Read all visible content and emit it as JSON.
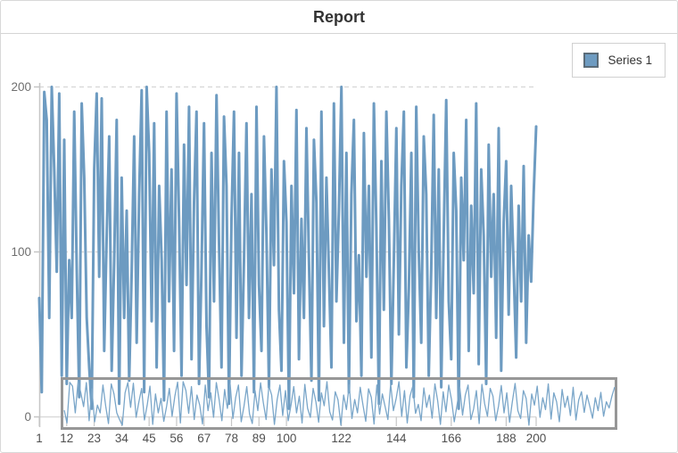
{
  "header": {
    "title": "Report"
  },
  "legend": {
    "position": "top-right",
    "items": [
      {
        "label": "Series 1",
        "color": "#6d9bc1"
      }
    ]
  },
  "colors": {
    "series": "#6d9bc1",
    "mini_series": "#7aa6c9",
    "grid": "#d9d9d9",
    "axis": "#c6c6c6",
    "x_tick_label": "#4f4f4f",
    "y_tick_label": "#6e6e6e",
    "range_box_border": "#979797",
    "panel_border": "#d8d8d8",
    "title_text": "#333333"
  },
  "chart_data": {
    "type": "line",
    "title": "Report",
    "xlabel": "",
    "ylabel": "",
    "x_range": [
      1,
      200
    ],
    "ylim": [
      0,
      200
    ],
    "y_ticks": [
      0,
      100,
      200
    ],
    "x_ticks": [
      1,
      12,
      23,
      34,
      45,
      56,
      67,
      78,
      89,
      100,
      122,
      144,
      166,
      188,
      200
    ],
    "grid": "horizontal-dashed",
    "legend_position": "top-right",
    "range_navigator": {
      "visible": true,
      "shows_full_series": true
    },
    "series": [
      {
        "name": "Series 1",
        "values": [
          72,
          15,
          197,
          180,
          60,
          200,
          150,
          88,
          196,
          25,
          168,
          20,
          95,
          60,
          185,
          90,
          12,
          190,
          145,
          60,
          30,
          5,
          150,
          196,
          85,
          193,
          40,
          110,
          170,
          28,
          95,
          180,
          8,
          145,
          60,
          125,
          22,
          88,
          170,
          45,
          135,
          198,
          15,
          200,
          160,
          58,
          178,
          30,
          140,
          95,
          10,
          185,
          70,
          150,
          40,
          196,
          120,
          25,
          165,
          80,
          188,
          35,
          130,
          185,
          20,
          90,
          178,
          55,
          12,
          160,
          70,
          195,
          105,
          30,
          182,
          140,
          8,
          120,
          185,
          48,
          160,
          25,
          95,
          178,
          60,
          135,
          15,
          188,
          80,
          40,
          170,
          110,
          18,
          150,
          92,
          200,
          65,
          28,
          155,
          118,
          5,
          140,
          75,
          186,
          35,
          120,
          60,
          175,
          95,
          22,
          168,
          130,
          10,
          185,
          55,
          145,
          88,
          30,
          190,
          70,
          125,
          200,
          45,
          160,
          15,
          135,
          180,
          58,
          98,
          25,
          172,
          85,
          140,
          36,
          190,
          115,
          8,
          155,
          65,
          185,
          120,
          20,
          95,
          175,
          50,
          140,
          185,
          30,
          78,
          160,
          12,
          188,
          100,
          45,
          170,
          135,
          25,
          90,
          183,
          60,
          150,
          18,
          110,
          192,
          70,
          35,
          160,
          125,
          5,
          145,
          95,
          180,
          40,
          128,
          75,
          190,
          32,
          150,
          110,
          20,
          165,
          85,
          135,
          48,
          175,
          28,
          118,
          155,
          62,
          140,
          90,
          36,
          128,
          70,
          152,
          45,
          110,
          82,
          135,
          176
        ]
      }
    ]
  }
}
